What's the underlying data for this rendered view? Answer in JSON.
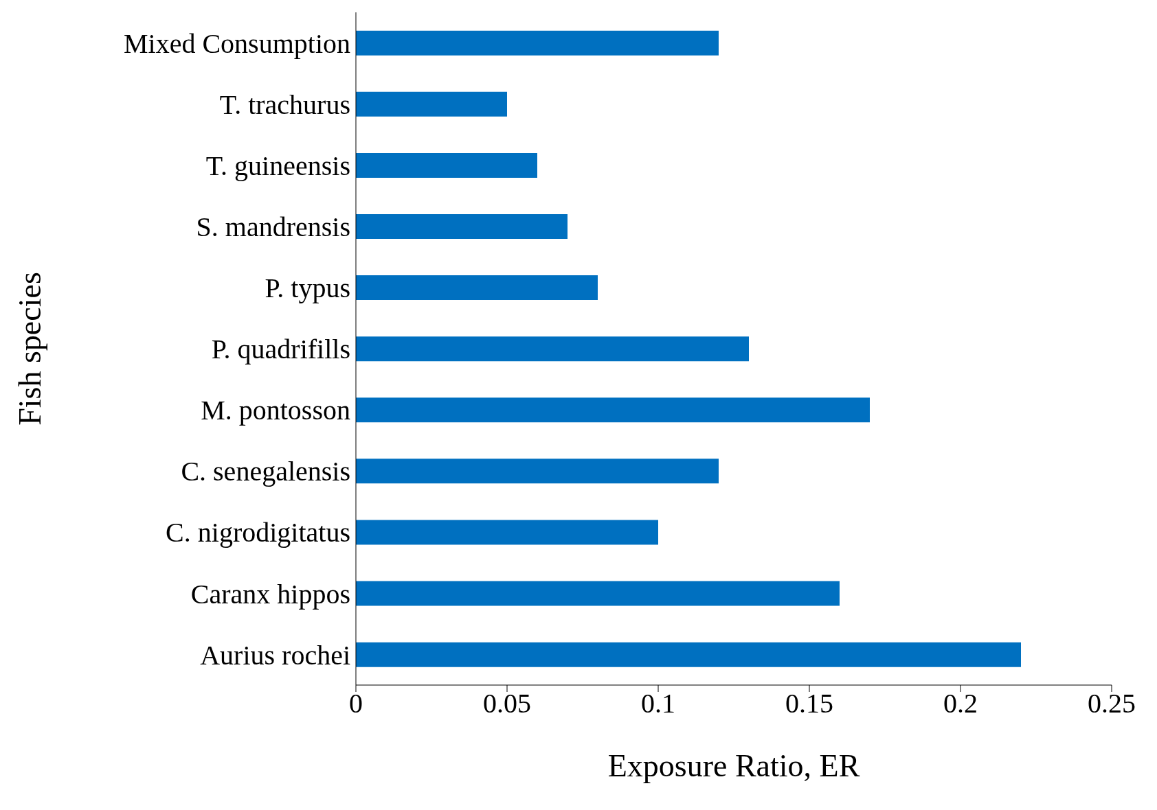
{
  "chart_data": {
    "type": "bar",
    "orientation": "horizontal",
    "xlabel": "Exposure Ratio, ER",
    "ylabel": "Fish species",
    "categories": [
      "Mixed Consumption",
      "T. trachurus",
      "T. guineensis",
      "S. mandrensis",
      "P. typus",
      "P. quadrifills",
      "M. pontosson",
      "C. senegalensis",
      "C. nigrodigitatus",
      "Caranx hippos",
      "Aurius rochei"
    ],
    "values": [
      0.12,
      0.05,
      0.06,
      0.07,
      0.08,
      0.13,
      0.17,
      0.12,
      0.1,
      0.16,
      0.22
    ],
    "color": "#0070c0",
    "xlim": [
      0,
      0.25
    ],
    "xticks": [
      0,
      0.05,
      0.1,
      0.15,
      0.2,
      0.25
    ],
    "grid": false,
    "legend": false
  }
}
